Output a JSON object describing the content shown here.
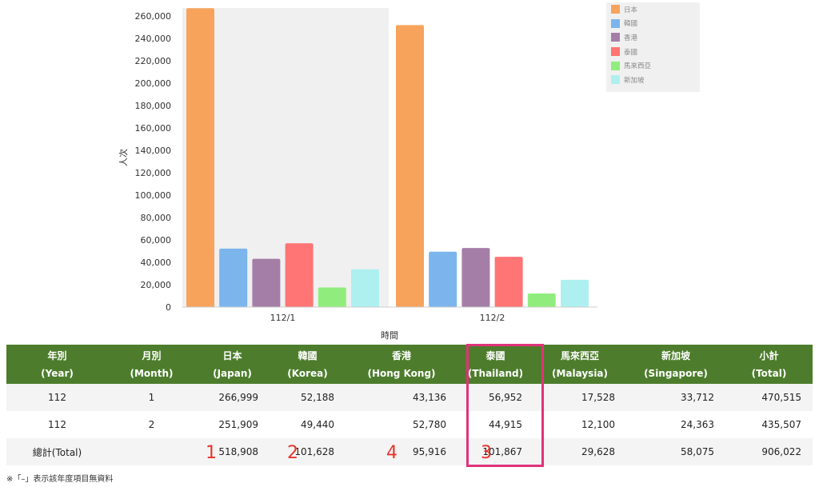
{
  "chart_data": {
    "type": "bar",
    "categories": [
      "112/1",
      "112/2"
    ],
    "series": [
      {
        "name": "日本",
        "values": [
          266999,
          251909
        ],
        "color": "#f7a35c"
      },
      {
        "name": "韓國",
        "values": [
          52188,
          49440
        ],
        "color": "#7cb5ec"
      },
      {
        "name": "香港",
        "values": [
          43136,
          52780
        ],
        "color": "#a57ea8"
      },
      {
        "name": "泰國",
        "values": [
          56952,
          44915
        ],
        "color": "#ff7474"
      },
      {
        "name": "馬來西亞",
        "values": [
          17528,
          12100
        ],
        "color": "#90ed7d"
      },
      {
        "name": "新加坡",
        "values": [
          33712,
          24363
        ],
        "color": "#aef0ef"
      }
    ],
    "xlabel": "時間",
    "ylabel": "人次",
    "ylim": [
      0,
      260000
    ],
    "yticks": [
      0,
      20000,
      40000,
      60000,
      80000,
      100000,
      120000,
      140000,
      160000,
      180000,
      200000,
      220000,
      240000,
      260000
    ],
    "ytick_labels": [
      "0",
      "20,000",
      "40,000",
      "60,000",
      "80,000",
      "100,000",
      "120,000",
      "140,000",
      "160,000",
      "180,000",
      "200,000",
      "220,000",
      "240,000",
      "260,000"
    ],
    "highlighted_category": "112/1",
    "legend_position": "top-right"
  },
  "table": {
    "headers": [
      {
        "zh": "年別",
        "en": "(Year)"
      },
      {
        "zh": "月別",
        "en": "(Month)"
      },
      {
        "zh": "日本",
        "en": "(Japan)"
      },
      {
        "zh": "韓國",
        "en": "(Korea)"
      },
      {
        "zh": "香港",
        "en": "(Hong Kong)"
      },
      {
        "zh": "泰國",
        "en": "(Thailand)"
      },
      {
        "zh": "馬來西亞",
        "en": "(Malaysia)"
      },
      {
        "zh": "新加坡",
        "en": "(Singapore)"
      },
      {
        "zh": "小計",
        "en": "(Total)"
      }
    ],
    "rows": [
      [
        "112",
        "1",
        "266,999",
        "52,188",
        "43,136",
        "56,952",
        "17,528",
        "33,712",
        "470,515"
      ],
      [
        "112",
        "2",
        "251,909",
        "49,440",
        "52,780",
        "44,915",
        "12,100",
        "24,363",
        "435,507"
      ]
    ],
    "total_row": [
      "總計(Total)",
      "",
      "518,908",
      "101,628",
      "95,916",
      "101,867",
      "29,628",
      "58,075",
      "906,022"
    ],
    "rank_marks": [
      "1",
      "2",
      "4",
      "3"
    ]
  },
  "footnote": "※「–」表示該年度項目無資料",
  "colors": {
    "header_bg": "#4d7d2c",
    "highlight_border": "#e0337a",
    "rank_color": "#e8332a"
  }
}
